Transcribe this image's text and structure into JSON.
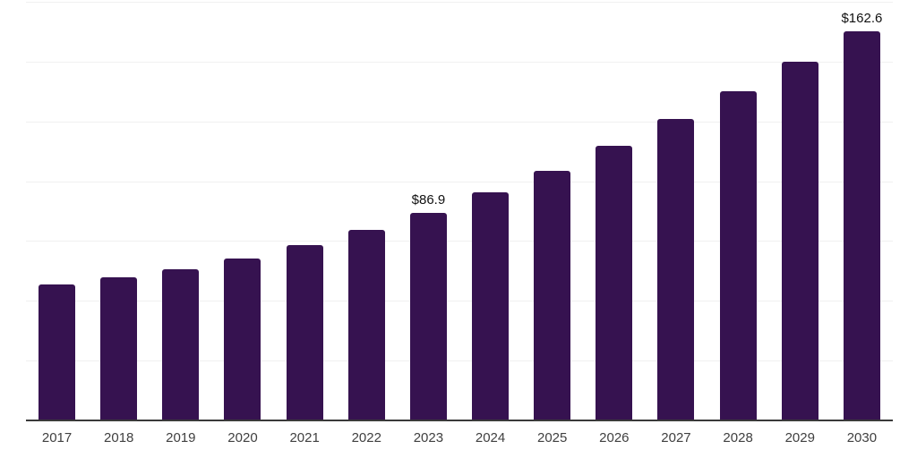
{
  "chart_data": {
    "type": "bar",
    "categories": [
      "2017",
      "2018",
      "2019",
      "2020",
      "2021",
      "2022",
      "2023",
      "2024",
      "2025",
      "2026",
      "2027",
      "2028",
      "2029",
      "2030"
    ],
    "values": [
      56.8,
      59.8,
      63.1,
      67.6,
      73.2,
      79.7,
      86.9,
      95.4,
      104.5,
      114.9,
      126.1,
      137.6,
      150.1,
      162.6
    ],
    "data_labels": [
      "",
      "",
      "",
      "",
      "",
      "",
      "$86.9",
      "",
      "",
      "",
      "",
      "",
      "",
      "$162.6"
    ],
    "title": "",
    "xlabel": "",
    "ylabel": "",
    "ylim": [
      0,
      175
    ],
    "gridline_interval": 25,
    "grid": true,
    "legend": "none",
    "colors": {
      "bar": "#361250",
      "axis_line": "#3a3a3a",
      "gridline": "#f0f0f0",
      "tick_label": "#404040",
      "data_label": "#111111",
      "background": "#ffffff"
    }
  }
}
